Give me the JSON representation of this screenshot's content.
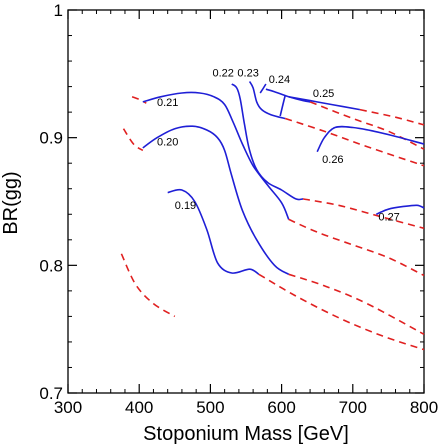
{
  "chart_data": {
    "type": "line",
    "title": "",
    "xlabel": "Stoponium Mass  [GeV]",
    "ylabel": "BR(gg)",
    "xlim": [
      300,
      800
    ],
    "ylim": [
      0.7,
      1.0
    ],
    "xticks": [
      300,
      400,
      500,
      600,
      700,
      800
    ],
    "yticks": [
      0.7,
      0.8,
      0.9,
      1.0
    ],
    "xtick_labels": [
      "300",
      "400",
      "500",
      "600",
      "700",
      "800"
    ],
    "ytick_labels": [
      "0.7",
      "0.8",
      "0.9",
      "1"
    ],
    "grid": false,
    "colors": {
      "solid": "#1f1fd6",
      "dashed": "#e02020",
      "axis": "#000000"
    },
    "curves": [
      {
        "label": "0.19",
        "dashed_left": [
          [
            375,
            0.809
          ],
          [
            395,
            0.785
          ],
          [
            420,
            0.77
          ],
          [
            450,
            0.76
          ]
        ],
        "solid": [
          [
            440,
            0.857
          ],
          [
            460,
            0.859
          ],
          [
            478,
            0.85
          ],
          [
            495,
            0.828
          ],
          [
            510,
            0.802
          ],
          [
            530,
            0.794
          ],
          [
            555,
            0.797
          ],
          [
            568,
            0.793
          ]
        ],
        "dashed_right": [
          [
            568,
            0.793
          ],
          [
            620,
            0.776
          ],
          [
            680,
            0.759
          ],
          [
            740,
            0.745
          ],
          [
            800,
            0.734
          ]
        ]
      },
      {
        "label": "0.20",
        "dashed_left": [
          [
            378,
            0.907
          ],
          [
            392,
            0.895
          ],
          [
            405,
            0.89
          ]
        ],
        "solid": [
          [
            405,
            0.892
          ],
          [
            425,
            0.9
          ],
          [
            450,
            0.907
          ],
          [
            475,
            0.909
          ],
          [
            495,
            0.906
          ],
          [
            510,
            0.9
          ],
          [
            520,
            0.89
          ],
          [
            530,
            0.87
          ],
          [
            545,
            0.843
          ],
          [
            565,
            0.82
          ],
          [
            590,
            0.8
          ],
          [
            610,
            0.793
          ]
        ],
        "dashed_right": [
          [
            610,
            0.793
          ],
          [
            660,
            0.784
          ],
          [
            720,
            0.77
          ],
          [
            800,
            0.746
          ]
        ]
      },
      {
        "label": "0.21",
        "dashed_left": [
          [
            390,
            0.932
          ],
          [
            400,
            0.93
          ],
          [
            410,
            0.927
          ]
        ],
        "solid": [
          [
            405,
            0.928
          ],
          [
            430,
            0.932
          ],
          [
            460,
            0.935
          ],
          [
            485,
            0.935
          ],
          [
            505,
            0.932
          ],
          [
            520,
            0.926
          ],
          [
            532,
            0.912
          ],
          [
            545,
            0.895
          ],
          [
            560,
            0.878
          ],
          [
            580,
            0.863
          ],
          [
            600,
            0.849
          ],
          [
            610,
            0.836
          ]
        ],
        "dashed_right": [
          [
            610,
            0.836
          ],
          [
            650,
            0.826
          ],
          [
            700,
            0.816
          ],
          [
            750,
            0.806
          ],
          [
            800,
            0.792
          ]
        ]
      },
      {
        "label": "0.22",
        "solid": [
          [
            530,
            0.942
          ],
          [
            537,
            0.939
          ],
          [
            542,
            0.93
          ],
          [
            548,
            0.91
          ],
          [
            555,
            0.89
          ],
          [
            565,
            0.875
          ],
          [
            580,
            0.865
          ],
          [
            600,
            0.859
          ],
          [
            620,
            0.852
          ],
          [
            630,
            0.852
          ]
        ],
        "dashed_right": [
          [
            630,
            0.852
          ],
          [
            680,
            0.847
          ],
          [
            740,
            0.838
          ],
          [
            800,
            0.829
          ]
        ]
      },
      {
        "label": "0.23",
        "solid": [
          [
            555,
            0.944
          ],
          [
            560,
            0.939
          ],
          [
            565,
            0.928
          ],
          [
            572,
            0.922
          ],
          [
            585,
            0.918
          ],
          [
            605,
            0.915
          ]
        ],
        "dashed_right": [
          [
            605,
            0.915
          ],
          [
            660,
            0.905
          ],
          [
            720,
            0.893
          ],
          [
            800,
            0.878
          ]
        ]
      },
      {
        "label": "0.24",
        "solid": [
          [
            578,
            0.938
          ],
          [
            590,
            0.936
          ],
          [
            610,
            0.932
          ],
          [
            630,
            0.929
          ],
          [
            640,
            0.928
          ]
        ],
        "dashed_right": [
          [
            640,
            0.928
          ],
          [
            700,
            0.915
          ],
          [
            750,
            0.905
          ],
          [
            800,
            0.891
          ]
        ]
      },
      {
        "label": "0.25",
        "solid": [
          [
            610,
            0.932
          ],
          [
            640,
            0.929
          ],
          [
            670,
            0.926
          ],
          [
            710,
            0.922
          ]
        ],
        "dashed_right": [
          [
            710,
            0.922
          ],
          [
            760,
            0.916
          ],
          [
            800,
            0.91
          ]
        ]
      },
      {
        "label": "0.26",
        "solid": [
          [
            650,
            0.889
          ],
          [
            660,
            0.9
          ],
          [
            675,
            0.908
          ],
          [
            700,
            0.908
          ],
          [
            730,
            0.905
          ],
          [
            760,
            0.901
          ],
          [
            800,
            0.895
          ]
        ],
        "dashed_right": []
      },
      {
        "label": "0.27",
        "solid": [
          [
            733,
            0.84
          ],
          [
            750,
            0.844
          ],
          [
            770,
            0.846
          ],
          [
            790,
            0.847
          ],
          [
            800,
            0.845
          ]
        ],
        "dashed_right": []
      }
    ],
    "extra_solid_segments": [
      [
        [
          570,
          0.935
        ],
        [
          578,
          0.942
        ]
      ],
      [
        [
          598,
          0.917
        ],
        [
          605,
          0.933
        ]
      ]
    ],
    "contour_labels": [
      {
        "text": "0.19",
        "at": [
          465,
          0.844
        ]
      },
      {
        "text": "0.20",
        "at": [
          440,
          0.894
        ]
      },
      {
        "text": "0.21",
        "at": [
          440,
          0.925
        ]
      },
      {
        "text": "0.22",
        "at": [
          518,
          0.948
        ]
      },
      {
        "text": "0.23",
        "at": [
          553,
          0.948
        ]
      },
      {
        "text": "0.24",
        "at": [
          597,
          0.943
        ]
      },
      {
        "text": "0.25",
        "at": [
          659,
          0.932
        ]
      },
      {
        "text": "0.26",
        "at": [
          672,
          0.88
        ]
      },
      {
        "text": "0.27",
        "at": [
          751,
          0.835
        ]
      }
    ]
  }
}
